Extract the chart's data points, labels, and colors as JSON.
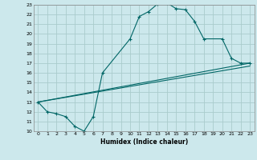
{
  "xlabel": "Humidex (Indice chaleur)",
  "bg_color": "#cce8ec",
  "grid_color": "#aacccc",
  "line_color": "#006666",
  "xlim": [
    -0.5,
    23.5
  ],
  "ylim": [
    10,
    23
  ],
  "xticks": [
    0,
    1,
    2,
    3,
    4,
    5,
    6,
    7,
    8,
    9,
    10,
    11,
    12,
    13,
    14,
    15,
    16,
    17,
    18,
    19,
    20,
    21,
    22,
    23
  ],
  "yticks": [
    10,
    11,
    12,
    13,
    14,
    15,
    16,
    17,
    18,
    19,
    20,
    21,
    22,
    23
  ],
  "series0": {
    "x": [
      0,
      1,
      2,
      3,
      4,
      5,
      6,
      7,
      10,
      11,
      12,
      13,
      14,
      15,
      16,
      17,
      18,
      20,
      21,
      22,
      23
    ],
    "y": [
      13,
      12,
      11.8,
      11.5,
      10.5,
      10,
      11.5,
      16,
      19.5,
      21.8,
      22.3,
      23.1,
      23.2,
      22.6,
      22.5,
      21.3,
      19.5,
      19.5,
      17.5,
      17,
      17
    ]
  },
  "series1": {
    "x": [
      0,
      23
    ],
    "y": [
      13,
      17
    ]
  },
  "series2": {
    "x": [
      0,
      23
    ],
    "y": [
      13,
      16.7
    ]
  }
}
